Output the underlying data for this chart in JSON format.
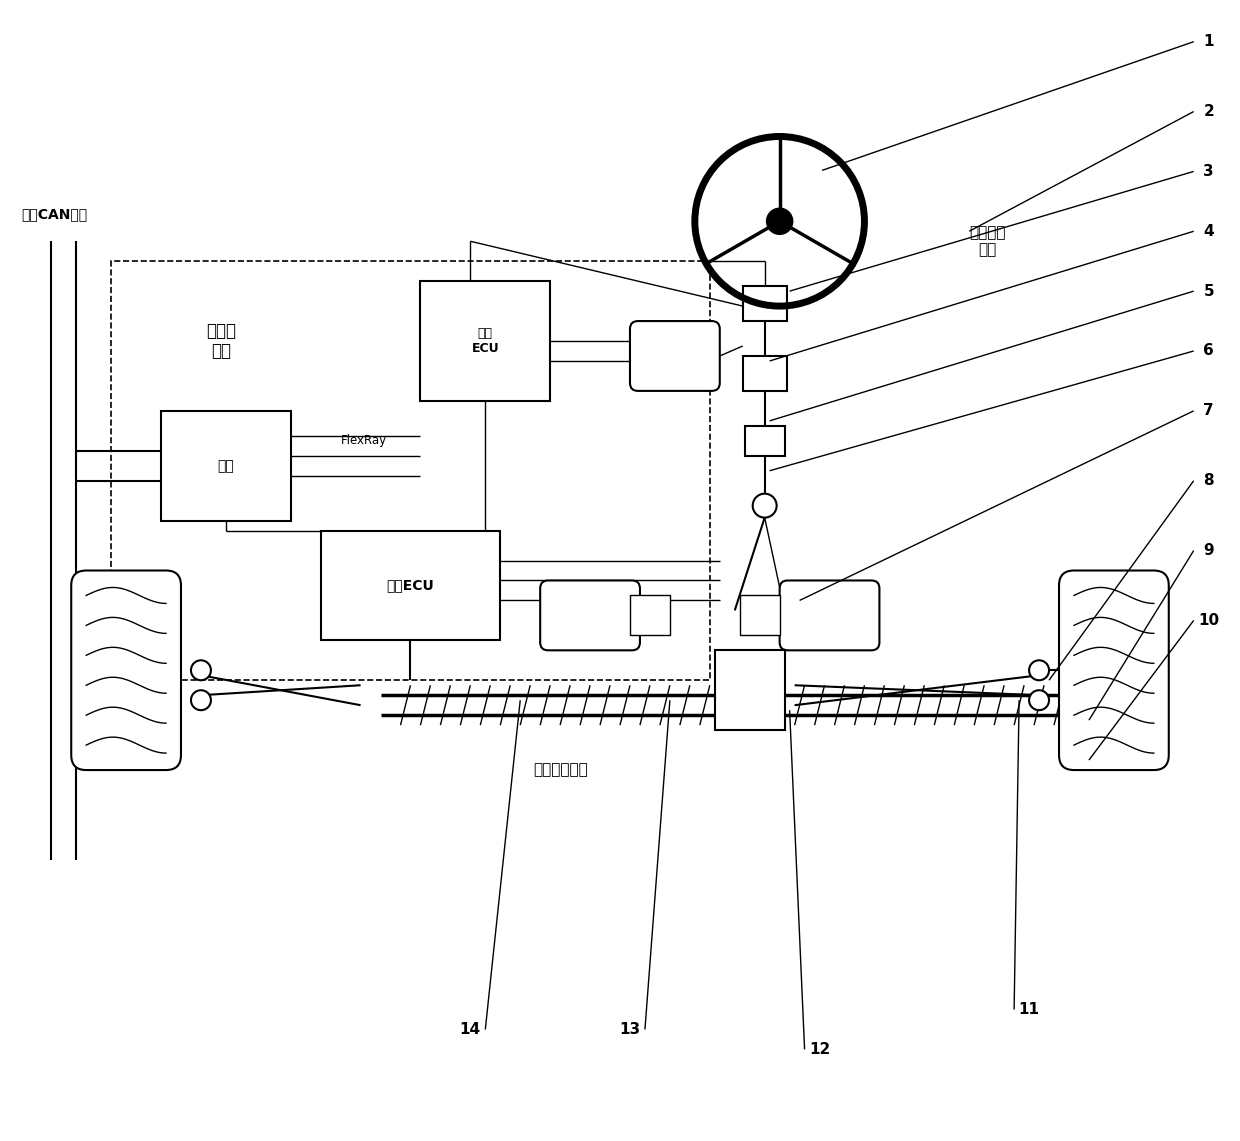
{
  "bg_color": "#ffffff",
  "figsize": [
    12.4,
    11.41
  ],
  "dpi": 100,
  "labels": {
    "can_bus": "整车CAN总线",
    "controller": "控制器\n模块",
    "gateway": "网关",
    "flexray": "FlexRay",
    "road_feel_ecu": "路感\nECU",
    "exec_ecu": "执行ECU",
    "steer_module": "转向操纵\n模块",
    "steer_exec": "转向执行模块"
  }
}
